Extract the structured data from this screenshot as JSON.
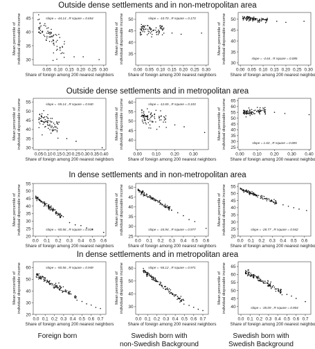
{
  "row_titles": [
    "Outside dense settlements and in non-metropolitan area",
    "Outside dense settlements and in metropolitan area",
    "In dense settlements and in non-metropolitan area",
    "In dense settlements and in metropolitan area"
  ],
  "column_labels": [
    {
      "line1": "Foreign born",
      "line2": ""
    },
    {
      "line1": "Swedish born with",
      "line2": "non-Swedish Background"
    },
    {
      "line1": "Swedish born with",
      "line2": "Swedish Background"
    }
  ],
  "chart_data": [
    {
      "type": "scatter",
      "row": 0,
      "col": 0,
      "xlabel": "Share of foreign among 200 nearest neighbors",
      "ylabel": "Mean percentile of individual disposable income",
      "xlim": [
        -0.01,
        0.31
      ],
      "ylim": [
        28,
        47
      ],
      "xticks": [
        0.05,
        0.1,
        0.15,
        0.2,
        0.25,
        0.3
      ],
      "xtick_labels": [
        "0.05",
        "0.10",
        "0.15",
        "0.20",
        "0.25",
        "0.30"
      ],
      "yticks": [
        30,
        35,
        40,
        45
      ],
      "ytick_labels": [
        "30",
        "35",
        "40",
        "45"
      ],
      "annotation": "slope = -44.14 , R square = 0.654",
      "annot_pos": "top",
      "trend": {
        "x0": 0.01,
        "x1": 0.13,
        "y0": 42,
        "y1": 33.5
      },
      "n_points": 80,
      "noise": 2.0,
      "seed": 11,
      "outliers": [
        [
          0.17,
          31
        ],
        [
          0.21,
          31
        ],
        [
          0.28,
          30
        ]
      ]
    },
    {
      "type": "scatter",
      "row": 0,
      "col": 1,
      "xlabel": "Share of foreign among 200 nearest neighbors",
      "ylabel": "Mean percentile of individual disposable income",
      "xlim": [
        -0.01,
        0.31
      ],
      "ylim": [
        30,
        53
      ],
      "xticks": [
        0.0,
        0.05,
        0.1,
        0.15,
        0.2,
        0.25,
        0.3
      ],
      "xtick_labels": [
        "0.00",
        "0.05",
        "0.10",
        "0.15",
        "0.20",
        "0.25",
        "0.30"
      ],
      "yticks": [
        35,
        40,
        45,
        50
      ],
      "ytick_labels": [
        "35",
        "40",
        "45",
        "50"
      ],
      "annotation": "slope = -10.70 , R square = 0.173",
      "annot_pos": "top",
      "trend": {
        "x0": 0.01,
        "x1": 0.12,
        "y0": 45.5,
        "y1": 45
      },
      "n_points": 80,
      "noise": 1.3,
      "seed": 23,
      "outliers": [
        [
          0.15,
          44
        ],
        [
          0.19,
          43.5
        ],
        [
          0.28,
          44
        ]
      ]
    },
    {
      "type": "scatter",
      "row": 0,
      "col": 2,
      "xlabel": "Share of foreign among 200 nearest neighbors",
      "ylabel": "Mean percentile of individual disposable income",
      "xlim": [
        -0.01,
        0.31
      ],
      "ylim": [
        29,
        53
      ],
      "xticks": [
        0.0,
        0.05,
        0.1,
        0.15,
        0.2,
        0.25,
        0.3
      ],
      "xtick_labels": [
        "0.00",
        "0.05",
        "0.10",
        "0.15",
        "0.20",
        "0.25",
        "0.30"
      ],
      "yticks": [
        30,
        35,
        40,
        45,
        50
      ],
      "ytick_labels": [
        "30",
        "35",
        "40",
        "45",
        "50"
      ],
      "annotation": "slope = -4.64 , R square = 0.085",
      "annot_pos": "bottom",
      "trend": {
        "x0": 0.01,
        "x1": 0.12,
        "y0": 50.5,
        "y1": 49.5
      },
      "n_points": 90,
      "noise": 0.5,
      "seed": 37,
      "outliers": [
        [
          0.16,
          49
        ],
        [
          0.2,
          48.5
        ],
        [
          0.28,
          49
        ]
      ]
    },
    {
      "type": "scatter",
      "row": 1,
      "col": 0,
      "xlabel": "Share of foreign among 200 nearest neighbors",
      "ylabel": "Mean percentile of individual disposable income",
      "xlim": [
        0.02,
        0.41
      ],
      "ylim": [
        29,
        57
      ],
      "xticks": [
        0.05,
        0.1,
        0.15,
        0.2,
        0.25,
        0.3,
        0.35,
        0.4
      ],
      "xtick_labels": [
        "0.05",
        "0.10",
        "0.15",
        "0.20",
        "0.25",
        "0.30",
        "0.35",
        "0.40"
      ],
      "yticks": [
        30,
        35,
        40,
        45,
        50,
        55
      ],
      "ytick_labels": [
        "30",
        "35",
        "40",
        "45",
        "50",
        "55"
      ],
      "annotation": "slope = -55.14 , R square = 0.540",
      "annot_pos": "top",
      "trend": {
        "x0": 0.05,
        "x1": 0.16,
        "y0": 46,
        "y1": 40.5
      },
      "n_points": 80,
      "noise": 2.2,
      "seed": 41,
      "outliers": [
        [
          0.2,
          35
        ],
        [
          0.25,
          33.5
        ],
        [
          0.39,
          30
        ]
      ]
    },
    {
      "type": "scatter",
      "row": 1,
      "col": 1,
      "xlabel": "Share of foreign among 200 nearest neighbors",
      "ylabel": "Mean percentile of individual disposable income",
      "xlim": [
        -0.01,
        0.38
      ],
      "ylim": [
        35,
        62
      ],
      "xticks": [
        0.0,
        0.1,
        0.2,
        0.3
      ],
      "xtick_labels": [
        "0.00",
        "0.10",
        "0.20",
        "0.30"
      ],
      "yticks": [
        40,
        45,
        50,
        55,
        60
      ],
      "ytick_labels": [
        "40",
        "45",
        "50",
        "55",
        "60"
      ],
      "annotation": "slope = -12.65 , R square = 0.103",
      "annot_pos": "top",
      "trend": {
        "x0": 0.02,
        "x1": 0.16,
        "y0": 52,
        "y1": 51
      },
      "n_points": 80,
      "noise": 2.0,
      "seed": 53,
      "outliers": [
        [
          0.2,
          48
        ],
        [
          0.25,
          47
        ],
        [
          0.36,
          44
        ]
      ]
    },
    {
      "type": "scatter",
      "row": 1,
      "col": 2,
      "xlabel": "Share of foreign among 200 nearest neighbors",
      "ylabel": "Mean percentile of individual disposable income",
      "xlim": [
        -0.01,
        0.41
      ],
      "ylim": [
        23,
        67
      ],
      "xticks": [
        0.0,
        0.1,
        0.2,
        0.3,
        0.4
      ],
      "xtick_labels": [
        "0.00",
        "0.10",
        "0.20",
        "0.30",
        "0.40"
      ],
      "yticks": [
        25,
        30,
        35,
        40,
        45,
        50,
        55,
        60,
        65
      ],
      "ytick_labels": [
        "25",
        "30",
        "35",
        "40",
        "45",
        "50",
        "55",
        "60",
        "65"
      ],
      "annotation": "slope = 1.63 , R square = 0.005",
      "annot_pos": "bottom",
      "trend": {
        "x0": 0.02,
        "x1": 0.15,
        "y0": 55,
        "y1": 56
      },
      "n_points": 90,
      "noise": 1.4,
      "seed": 67,
      "outliers": [
        [
          0.2,
          55
        ],
        [
          0.26,
          54
        ],
        [
          0.4,
          53
        ]
      ]
    },
    {
      "type": "scatter",
      "row": 2,
      "col": 0,
      "xlabel": "Share of foreign among 200 nearest neighbors",
      "ylabel": "Mean percentile of individual disposable income",
      "xlim": [
        -0.02,
        0.62
      ],
      "ylim": [
        20,
        55
      ],
      "xticks": [
        0.0,
        0.1,
        0.2,
        0.3,
        0.4,
        0.5,
        0.6
      ],
      "xtick_labels": [
        "0.0",
        "0.1",
        "0.2",
        "0.3",
        "0.4",
        "0.5",
        "0.6"
      ],
      "yticks": [
        20,
        25,
        30,
        35,
        40,
        45,
        50,
        55
      ],
      "ytick_labels": [
        "20",
        "25",
        "30",
        "35",
        "40",
        "45",
        "50",
        "55"
      ],
      "annotation": "slope = -50.56 , R square = 0.926",
      "annot_pos": "bottom",
      "trend": {
        "x0": 0.0,
        "x1": 0.25,
        "y0": 46,
        "y1": 32
      },
      "n_points": 110,
      "noise": 0.8,
      "seed": 71,
      "outliers": [
        [
          0.3,
          29
        ],
        [
          0.35,
          27.5
        ],
        [
          0.4,
          27
        ],
        [
          0.45,
          25.5
        ],
        [
          0.5,
          24.5
        ],
        [
          0.6,
          22.5
        ]
      ]
    },
    {
      "type": "scatter",
      "row": 2,
      "col": 1,
      "xlabel": "Share of foreign among 200 nearest neighbors",
      "ylabel": "Mean percentile of individual disposable income",
      "xlim": [
        -0.02,
        0.62
      ],
      "ylim": [
        25,
        52
      ],
      "xticks": [
        0.0,
        0.1,
        0.2,
        0.3,
        0.4,
        0.5,
        0.6
      ],
      "xtick_labels": [
        "0.0",
        "0.1",
        "0.2",
        "0.3",
        "0.4",
        "0.5",
        "0.6"
      ],
      "yticks": [
        25,
        30,
        35,
        40,
        45,
        50
      ],
      "ytick_labels": [
        "25",
        "30",
        "35",
        "40",
        "45",
        "50"
      ],
      "annotation": "slope = -34.94 , R square = 0.977",
      "annot_pos": "bottom",
      "trend": {
        "x0": 0.0,
        "x1": 0.3,
        "y0": 48.5,
        "y1": 38.5
      },
      "n_points": 110,
      "noise": 0.5,
      "seed": 83,
      "outliers": [
        [
          0.35,
          37
        ],
        [
          0.4,
          35.5
        ],
        [
          0.45,
          33.5
        ],
        [
          0.5,
          32.5
        ],
        [
          0.6,
          29
        ]
      ]
    },
    {
      "type": "scatter",
      "row": 2,
      "col": 2,
      "xlabel": "Share of foreign among 200 nearest neighbors",
      "ylabel": "Mean percentile of individual disposable income",
      "xlim": [
        -0.02,
        0.66
      ],
      "ylim": [
        20,
        57
      ],
      "xticks": [
        0.0,
        0.1,
        0.2,
        0.3,
        0.4,
        0.5,
        0.6
      ],
      "xtick_labels": [
        "0.0",
        "0.1",
        "0.2",
        "0.3",
        "0.4",
        "0.5",
        "0.6"
      ],
      "yticks": [
        20,
        25,
        30,
        35,
        40,
        45,
        50,
        55
      ],
      "ytick_labels": [
        "20",
        "25",
        "30",
        "35",
        "40",
        "45",
        "50",
        "55"
      ],
      "annotation": "slope = -28.77 , R square = 0.942",
      "annot_pos": "bottom",
      "trend": {
        "x0": 0.0,
        "x1": 0.35,
        "y0": 53,
        "y1": 43
      },
      "n_points": 110,
      "noise": 0.6,
      "seed": 97,
      "outliers": [
        [
          0.4,
          42
        ],
        [
          0.45,
          41
        ],
        [
          0.5,
          40
        ],
        [
          0.55,
          39
        ],
        [
          0.62,
          38
        ]
      ]
    },
    {
      "type": "scatter",
      "row": 3,
      "col": 0,
      "xlabel": "Share of foreign among 200 nearest neighbors",
      "ylabel": "Mean percentile of individual disposable income",
      "xlim": [
        -0.03,
        0.76
      ],
      "ylim": [
        20,
        65
      ],
      "xticks": [
        0.0,
        0.1,
        0.2,
        0.3,
        0.4,
        0.5,
        0.6,
        0.7
      ],
      "xtick_labels": [
        "0.0",
        "0.1",
        "0.2",
        "0.3",
        "0.4",
        "0.5",
        "0.6",
        "0.7"
      ],
      "yticks": [
        20,
        30,
        40,
        50,
        60
      ],
      "ytick_labels": [
        "20",
        "30",
        "40",
        "50",
        "60"
      ],
      "annotation": "slope = -50.56 , R square = 0.949",
      "annot_pos": "top",
      "trend": {
        "x0": 0.0,
        "x1": 0.45,
        "y0": 54,
        "y1": 34
      },
      "n_points": 120,
      "noise": 1.2,
      "seed": 101,
      "outliers": [
        [
          0.5,
          31
        ],
        [
          0.55,
          29
        ],
        [
          0.6,
          28
        ],
        [
          0.65,
          26
        ],
        [
          0.7,
          25
        ]
      ]
    },
    {
      "type": "scatter",
      "row": 3,
      "col": 1,
      "xlabel": "Share of foreign among 200 nearest neighbors",
      "ylabel": "Mean percentile of individual disposable income",
      "xlim": [
        -0.03,
        0.76
      ],
      "ylim": [
        24,
        65
      ],
      "xticks": [
        0.0,
        0.1,
        0.2,
        0.3,
        0.4,
        0.5,
        0.6,
        0.7
      ],
      "xtick_labels": [
        "0.0",
        "0.1",
        "0.2",
        "0.3",
        "0.4",
        "0.5",
        "0.6",
        "0.7"
      ],
      "yticks": [
        30,
        40,
        50,
        60
      ],
      "ytick_labels": [
        "30",
        "40",
        "50",
        "60"
      ],
      "annotation": "slope = -56.12 , R square = 0.971",
      "annot_pos": "top",
      "trend": {
        "x0": 0.05,
        "x1": 0.5,
        "y0": 58,
        "y1": 33
      },
      "n_points": 120,
      "noise": 1.0,
      "seed": 113,
      "outliers": [
        [
          0.55,
          31
        ],
        [
          0.6,
          29.5
        ],
        [
          0.65,
          28
        ],
        [
          0.7,
          27
        ]
      ]
    },
    {
      "type": "scatter",
      "row": 3,
      "col": 2,
      "xlabel": "Share of foreign among 200 nearest neighbors",
      "ylabel": "Mean percentile of individual disposable income",
      "xlim": [
        -0.03,
        0.76
      ],
      "ylim": [
        35,
        68
      ],
      "xticks": [
        0.0,
        0.1,
        0.2,
        0.3,
        0.4,
        0.5,
        0.6,
        0.7
      ],
      "xtick_labels": [
        "0.0",
        "0.1",
        "0.2",
        "0.3",
        "0.4",
        "0.5",
        "0.6",
        "0.7"
      ],
      "yticks": [
        40,
        45,
        50,
        55,
        60,
        65
      ],
      "ytick_labels": [
        "40",
        "45",
        "50",
        "55",
        "60",
        "65"
      ],
      "annotation": "slope = -35.09 , R square = 0.904",
      "annot_pos": "bottom",
      "trend": {
        "x0": 0.05,
        "x1": 0.45,
        "y0": 62,
        "y1": 49
      },
      "n_points": 120,
      "noise": 0.9,
      "seed": 127,
      "outliers": [
        [
          0.5,
          47.5
        ],
        [
          0.55,
          46.5
        ],
        [
          0.6,
          45
        ],
        [
          0.7,
          43
        ]
      ]
    }
  ]
}
